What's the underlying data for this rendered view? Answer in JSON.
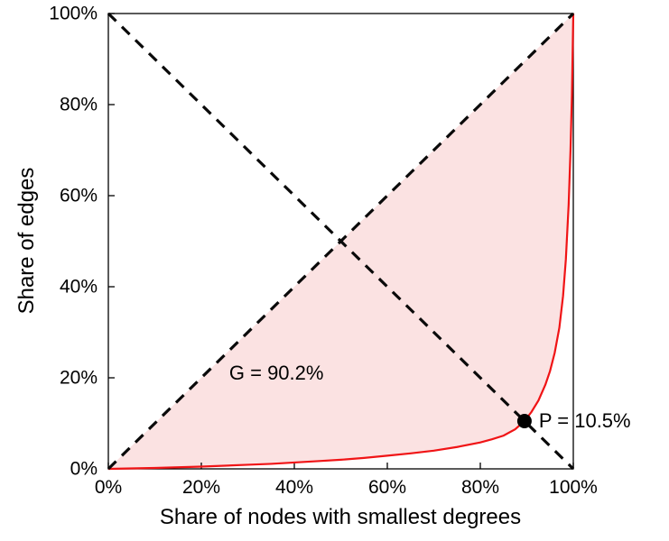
{
  "chart_data": {
    "type": "line",
    "title": "",
    "xlabel": "Share of nodes with smallest degrees",
    "ylabel": "Share of edges",
    "xlim": [
      0,
      100
    ],
    "ylim": [
      0,
      100
    ],
    "grid": false,
    "legend": "none",
    "x_ticks": [
      "0%",
      "20%",
      "40%",
      "60%",
      "80%",
      "100%"
    ],
    "x_tick_values": [
      0,
      20,
      40,
      60,
      80,
      100
    ],
    "y_ticks": [
      "0%",
      "20%",
      "40%",
      "60%",
      "80%",
      "100%"
    ],
    "y_tick_values": [
      0,
      20,
      40,
      60,
      80,
      100
    ],
    "colors": {
      "lorenz_line": "#f01416",
      "fill_area": "#fbe2e2",
      "dashed_lines": "#0a0a0a",
      "point": "#000000",
      "axis": "#000000"
    },
    "series": [
      {
        "name": "lorenz-curve",
        "style": "solid",
        "color": "#f01416",
        "x": [
          0,
          5,
          10,
          15,
          20,
          25,
          30,
          35,
          40,
          45,
          50,
          55,
          60,
          65,
          70,
          75,
          80,
          82.5,
          85,
          87.5,
          89.5,
          91,
          92.5,
          94,
          95,
          96,
          97,
          97.8,
          98.4,
          99,
          99.4,
          99.7,
          100
        ],
        "y": [
          0,
          0.1,
          0.2,
          0.35,
          0.5,
          0.7,
          0.9,
          1.1,
          1.4,
          1.7,
          2.0,
          2.4,
          2.9,
          3.4,
          4.0,
          4.8,
          5.8,
          6.5,
          7.3,
          8.7,
          10.5,
          12.5,
          15,
          18.5,
          21.5,
          25.5,
          31,
          38,
          46,
          58,
          70,
          82,
          100
        ]
      },
      {
        "name": "equality-diagonal",
        "style": "dashed",
        "color": "#0a0a0a",
        "x": [
          0,
          100
        ],
        "y": [
          0,
          100
        ]
      },
      {
        "name": "anti-diagonal",
        "style": "dashed",
        "color": "#0a0a0a",
        "x": [
          0,
          100
        ],
        "y": [
          100,
          0
        ]
      }
    ],
    "fill_between": {
      "upper": "equality-diagonal",
      "lower": "lorenz-curve",
      "color": "#fbe2e2"
    },
    "point": {
      "x": 89.5,
      "y": 10.5,
      "color": "#000000"
    },
    "annotations": [
      {
        "text": "G = 90.2%",
        "x": 26,
        "y": 21
      },
      {
        "text": "P = 10.5%",
        "x": 92.6,
        "y": 10.5
      }
    ],
    "gini_percent": 90.2,
    "p_percent": 10.5
  }
}
